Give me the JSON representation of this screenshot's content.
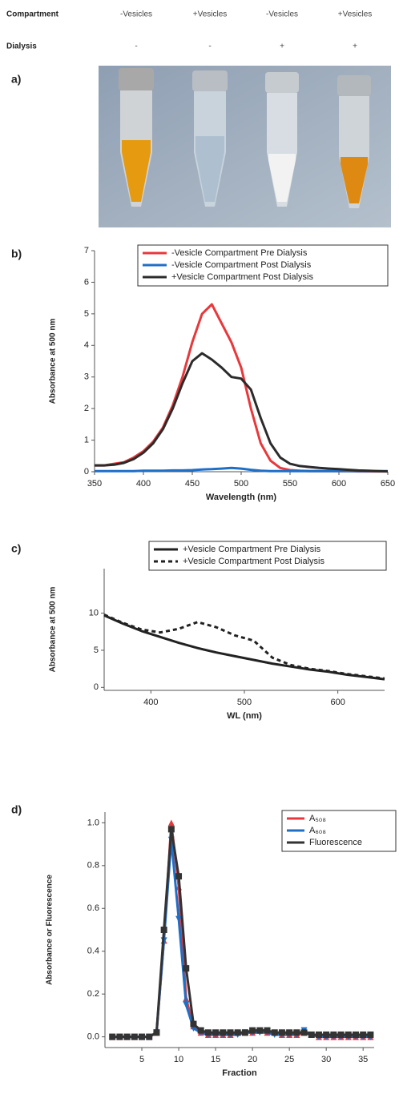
{
  "header": {
    "rows": [
      {
        "label": "Compartment",
        "cells": [
          "-Vesicles",
          "+Vesicles",
          "-Vesicles",
          "+Vesicles"
        ]
      },
      {
        "label": "Dialysis",
        "cells": [
          "-",
          "-",
          "+",
          "+"
        ]
      }
    ]
  },
  "panel_labels": [
    "a)",
    "b)",
    "c)",
    "d)"
  ],
  "chart_data": [
    {
      "type": "line",
      "xlabel": "Wavelength (nm)",
      "ylabel": "Absorbance at 500 nm",
      "xlim": [
        350,
        650
      ],
      "ylim": [
        0,
        7
      ],
      "xticks": [
        350,
        400,
        450,
        500,
        550,
        600,
        650
      ],
      "yticks": [
        0,
        1,
        2,
        3,
        4,
        5,
        6,
        7
      ],
      "legend": "top-right",
      "x": [
        350,
        360,
        370,
        380,
        390,
        400,
        410,
        420,
        430,
        440,
        450,
        460,
        470,
        480,
        490,
        500,
        510,
        520,
        530,
        540,
        550,
        560,
        570,
        580,
        590,
        600,
        610,
        620,
        630,
        640,
        650
      ],
      "series": [
        {
          "name": "-Vesicle Compartment Pre Dialysis",
          "color": "#e8383b",
          "line_style": "solid",
          "values": [
            0.2,
            0.2,
            0.25,
            0.3,
            0.45,
            0.65,
            0.95,
            1.4,
            2.1,
            3.0,
            4.1,
            5.0,
            5.3,
            4.7,
            4.1,
            3.3,
            2.0,
            0.9,
            0.35,
            0.12,
            0.05,
            0.03,
            0.02,
            0.02,
            0.02,
            0.02,
            0.02,
            0.01,
            0.01,
            0.01,
            0.01
          ]
        },
        {
          "name": "-Vesicle Compartment Post Dialysis",
          "color": "#1e6fc8",
          "line_style": "solid",
          "values": [
            0.02,
            0.02,
            0.02,
            0.02,
            0.02,
            0.03,
            0.03,
            0.03,
            0.04,
            0.04,
            0.05,
            0.07,
            0.08,
            0.1,
            0.12,
            0.1,
            0.06,
            0.03,
            0.02,
            0.02,
            0.02,
            0.02,
            0.02,
            0.02,
            0.02,
            0.02,
            0.02,
            0.02,
            0.02,
            0.02,
            0.02
          ]
        },
        {
          "name": "+Vesicle Compartment Post Dialysis",
          "color": "#2b2b2b",
          "line_style": "solid",
          "values": [
            0.2,
            0.2,
            0.22,
            0.28,
            0.4,
            0.6,
            0.9,
            1.35,
            2.0,
            2.8,
            3.5,
            3.75,
            3.55,
            3.3,
            3.0,
            2.95,
            2.6,
            1.7,
            0.9,
            0.45,
            0.25,
            0.18,
            0.15,
            0.12,
            0.1,
            0.08,
            0.06,
            0.04,
            0.03,
            0.02,
            0.01
          ]
        }
      ]
    },
    {
      "type": "line",
      "xlabel": "WL (nm)",
      "ylabel": "Absorbance at 500 nm",
      "xlim": [
        350,
        650
      ],
      "ylim": [
        -0.4,
        16
      ],
      "xticks": [
        400,
        500,
        600
      ],
      "yticks": [
        0,
        5,
        10
      ],
      "legend": "top-right",
      "x": [
        350,
        370,
        390,
        410,
        430,
        450,
        470,
        490,
        510,
        530,
        550,
        570,
        590,
        610,
        630,
        650
      ],
      "series": [
        {
          "name": "+Vesicle Compartment Pre Dialysis",
          "color": "#222222",
          "line_style": "solid",
          "values": [
            9.7,
            8.6,
            7.6,
            6.8,
            6.0,
            5.3,
            4.7,
            4.2,
            3.7,
            3.2,
            2.8,
            2.4,
            2.1,
            1.7,
            1.4,
            1.1
          ]
        },
        {
          "name": "+Vesicle Compartment Post Dialysis",
          "color": "#222222",
          "line_style": "dashed",
          "values": [
            9.8,
            8.7,
            7.8,
            7.4,
            7.9,
            8.8,
            8.1,
            7.0,
            6.3,
            4.0,
            3.0,
            2.5,
            2.2,
            1.8,
            1.5,
            1.2
          ]
        }
      ]
    },
    {
      "type": "line",
      "xlabel": "Fraction",
      "ylabel": "Absorbance or Fluorescence",
      "xlim": [
        0,
        36.5
      ],
      "ylim": [
        -0.05,
        1.05
      ],
      "xticks": [
        5,
        10,
        15,
        20,
        25,
        30,
        35
      ],
      "yticks": [
        {
          "value": 0,
          "label": "0.0"
        },
        0.2,
        0.4,
        0.6,
        0.8,
        {
          "value": 1,
          "label": "1.0"
        }
      ],
      "legend": "top-right",
      "x": [
        1,
        2,
        3,
        4,
        5,
        6,
        7,
        8,
        9,
        10,
        11,
        12,
        13,
        14,
        15,
        16,
        17,
        18,
        19,
        20,
        21,
        22,
        23,
        24,
        25,
        26,
        27,
        28,
        29,
        30,
        31,
        32,
        33,
        34,
        35,
        36
      ],
      "series": [
        {
          "name": "A₅₀₈",
          "color": "#e8383b",
          "line_style": "solid",
          "marker": "triangle",
          "values": [
            0,
            0,
            0,
            0,
            0,
            0,
            0.02,
            0.45,
            1.0,
            0.7,
            0.18,
            0.05,
            0.02,
            0.01,
            0.01,
            0.01,
            0.01,
            0.02,
            0.02,
            0.02,
            0.03,
            0.02,
            0.02,
            0.01,
            0.01,
            0.01,
            0.02,
            0.01,
            0,
            0,
            0,
            0,
            0,
            0,
            0,
            0
          ]
        },
        {
          "name": "A₆₀₈",
          "color": "#1e6fc8",
          "line_style": "solid",
          "marker": "triangle-down",
          "values": [
            0,
            0,
            0,
            0,
            0,
            0,
            0.02,
            0.45,
            0.92,
            0.55,
            0.15,
            0.04,
            0.02,
            0.01,
            0.01,
            0.01,
            0.01,
            0.01,
            0.02,
            0.02,
            0.02,
            0.02,
            0.01,
            0.01,
            0.01,
            0.01,
            0.03,
            0.01,
            0,
            0,
            0,
            0,
            0,
            0,
            0,
            0
          ]
        },
        {
          "name": "Fluorescence",
          "color": "#333333",
          "line_style": "solid",
          "marker": "square",
          "values": [
            0,
            0,
            0,
            0,
            0,
            0,
            0.02,
            0.5,
            0.97,
            0.75,
            0.32,
            0.06,
            0.03,
            0.02,
            0.02,
            0.02,
            0.02,
            0.02,
            0.02,
            0.03,
            0.03,
            0.03,
            0.02,
            0.02,
            0.02,
            0.02,
            0.02,
            0.01,
            0.01,
            0.01,
            0.01,
            0.01,
            0.01,
            0.01,
            0.01,
            0.01
          ]
        }
      ]
    }
  ]
}
